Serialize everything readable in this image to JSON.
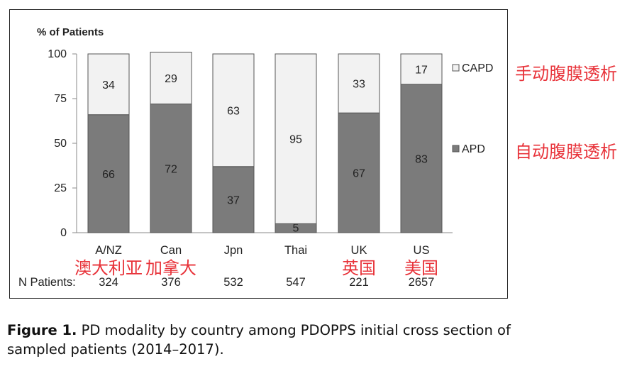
{
  "chart_data": {
    "type": "bar",
    "stacked": true,
    "percent": true,
    "categories": [
      "A/NZ",
      "Can",
      "Jpn",
      "Thai",
      "UK",
      "US"
    ],
    "n_label": "N Patients:",
    "n_patients": [
      "324",
      "376",
      "532",
      "547",
      "221",
      "2657"
    ],
    "series": [
      {
        "name": "APD",
        "values": [
          66,
          72,
          37,
          5,
          67,
          83
        ],
        "color": "#7b7b7b"
      },
      {
        "name": "CAPD",
        "values": [
          34,
          29,
          63,
          95,
          33,
          17
        ],
        "color": "#f2f2f2"
      }
    ],
    "ylabel": "% of Patients",
    "ylim": [
      0,
      100
    ],
    "yticks": [
      0,
      25,
      50,
      75,
      100
    ],
    "legend_position": "right",
    "grid": false
  },
  "annotations": {
    "capd_cn": "手动腹膜透析",
    "apd_cn": "自动腹膜透析",
    "country_cn": [
      "澳大利亚",
      "加拿大",
      "",
      "",
      "英国",
      "美国"
    ]
  },
  "caption": {
    "label": "Figure 1.",
    "text": " PD modality by country among PDOPPS initial cross section of sampled patients (2014–2017)."
  },
  "colors": {
    "annotation": "#e8333a",
    "bar_border": "#555555",
    "axis": "#888888"
  }
}
